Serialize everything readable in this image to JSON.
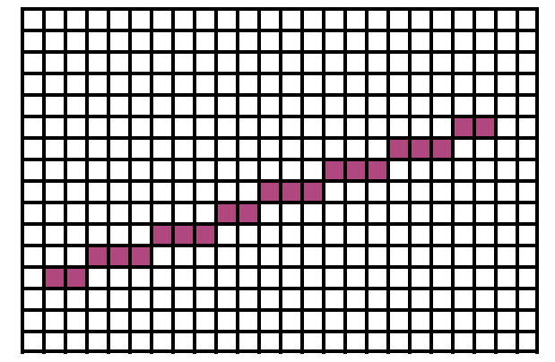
{
  "grid": {
    "columns": 24,
    "rows": 16,
    "line_color": "#000000",
    "background_color": "#ffffff",
    "fill_color": "#b0487f",
    "filled_cells": [
      {
        "col": 1,
        "row": 12
      },
      {
        "col": 2,
        "row": 12
      },
      {
        "col": 3,
        "row": 11
      },
      {
        "col": 4,
        "row": 11
      },
      {
        "col": 5,
        "row": 11
      },
      {
        "col": 6,
        "row": 10
      },
      {
        "col": 7,
        "row": 10
      },
      {
        "col": 8,
        "row": 10
      },
      {
        "col": 9,
        "row": 9
      },
      {
        "col": 10,
        "row": 9
      },
      {
        "col": 11,
        "row": 8
      },
      {
        "col": 12,
        "row": 8
      },
      {
        "col": 13,
        "row": 8
      },
      {
        "col": 14,
        "row": 7
      },
      {
        "col": 15,
        "row": 7
      },
      {
        "col": 16,
        "row": 7
      },
      {
        "col": 17,
        "row": 6
      },
      {
        "col": 18,
        "row": 6
      },
      {
        "col": 19,
        "row": 6
      },
      {
        "col": 20,
        "row": 5
      },
      {
        "col": 21,
        "row": 5
      }
    ]
  }
}
